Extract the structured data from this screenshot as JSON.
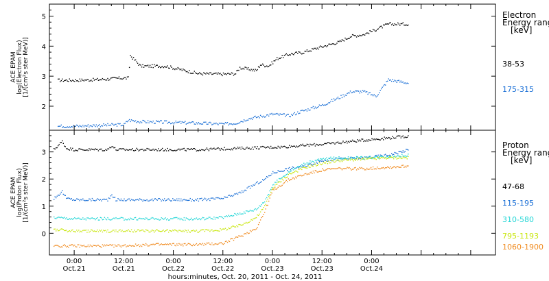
{
  "chart_data": [
    {
      "type": "scatter",
      "panel": "electron",
      "ylabel_lines": [
        "ACE EPAM",
        "log(Electron Flux)",
        "[1/(cm²s ster MeV)]"
      ],
      "ylim": [
        1.2,
        5.4
      ],
      "yticks": [
        "2",
        "3",
        "4",
        "5"
      ],
      "legend_title": [
        "Electron",
        "Energy range",
        "[keV]"
      ],
      "x_unit": "hours",
      "xlim": [
        -6,
        102
      ],
      "series": [
        {
          "name": "38-53",
          "color": "#000000",
          "x": [
            -4,
            0,
            6,
            11,
            13,
            13.5,
            16,
            22,
            30,
            36,
            39,
            40,
            44,
            45,
            47,
            49,
            52,
            55,
            60,
            64,
            67,
            70,
            76,
            81
          ],
          "y": [
            2.88,
            2.88,
            2.9,
            2.95,
            2.95,
            3.7,
            3.35,
            3.35,
            3.1,
            3.08,
            3.1,
            3.3,
            3.2,
            3.4,
            3.35,
            3.6,
            3.75,
            3.8,
            4.0,
            4.15,
            4.35,
            4.4,
            4.75,
            4.75
          ]
        },
        {
          "name": "175-315",
          "color": "#1a6fd6",
          "x": [
            -4,
            0,
            6,
            12,
            13,
            16,
            22,
            30,
            36,
            39,
            42,
            44,
            48,
            52,
            55,
            60,
            64,
            67,
            70,
            73,
            76,
            81
          ],
          "y": [
            1.35,
            1.35,
            1.38,
            1.4,
            1.55,
            1.5,
            1.48,
            1.45,
            1.42,
            1.45,
            1.6,
            1.65,
            1.75,
            1.7,
            1.85,
            2.05,
            2.3,
            2.5,
            2.5,
            2.35,
            2.9,
            2.78
          ]
        }
      ]
    },
    {
      "type": "scatter",
      "panel": "proton",
      "ylabel_lines": [
        "ACE EPAM",
        "log(Proton Flux)",
        "[1/(cm²s ster MeV)]"
      ],
      "ylim": [
        -0.8,
        3.8
      ],
      "yticks": [
        "0",
        "1",
        "2",
        "3"
      ],
      "legend_title": [
        "Proton",
        "Energy range",
        "[keV]"
      ],
      "x_unit": "hours",
      "xlim": [
        -6,
        102
      ],
      "xticks": [
        "0:00",
        "12:00",
        "0:00",
        "12:00",
        "0:00",
        "12:00",
        "0:00"
      ],
      "xticks_day": [
        "Oct.21",
        "Oct.21",
        "Oct.22",
        "Oct.22",
        "Oct.23",
        "Oct.23",
        "Oct.24"
      ],
      "xlabel": "hours:minutes, Oct. 20, 2011 - Oct. 24, 2011",
      "series": [
        {
          "name": "47-68",
          "color": "#000000",
          "x": [
            -5,
            -3,
            -2,
            0,
            8,
            9,
            10,
            14,
            20,
            30,
            40,
            50,
            60,
            70,
            81
          ],
          "y": [
            3.1,
            3.4,
            3.15,
            3.1,
            3.1,
            3.25,
            3.1,
            3.1,
            3.1,
            3.1,
            3.15,
            3.2,
            3.3,
            3.45,
            3.6
          ]
        },
        {
          "name": "115-195",
          "color": "#1a6fd6",
          "x": [
            -5,
            -3,
            -2,
            0,
            8,
            9,
            10,
            14,
            20,
            30,
            36,
            40,
            44,
            46,
            48,
            52,
            56,
            60,
            64,
            70,
            76,
            81
          ],
          "y": [
            1.3,
            1.55,
            1.3,
            1.25,
            1.25,
            1.45,
            1.25,
            1.25,
            1.25,
            1.25,
            1.3,
            1.5,
            1.85,
            2.0,
            2.25,
            2.4,
            2.5,
            2.7,
            2.75,
            2.8,
            2.9,
            3.1
          ]
        },
        {
          "name": "310-580",
          "color": "#22d6d6",
          "x": [
            -5,
            0,
            10,
            20,
            30,
            36,
            40,
            44,
            46,
            48,
            52,
            56,
            60,
            64,
            70,
            76,
            81
          ],
          "y": [
            0.6,
            0.55,
            0.55,
            0.55,
            0.55,
            0.6,
            0.75,
            0.9,
            1.2,
            1.8,
            2.3,
            2.6,
            2.75,
            2.8,
            2.8,
            2.85,
            2.9
          ]
        },
        {
          "name": "795-1193",
          "color": "#c8e60a",
          "x": [
            -5,
            0,
            10,
            20,
            30,
            36,
            40,
            44,
            46,
            48,
            52,
            56,
            60,
            64,
            70,
            76,
            81
          ],
          "y": [
            0.15,
            0.1,
            0.1,
            0.1,
            0.1,
            0.15,
            0.3,
            0.6,
            1.0,
            1.7,
            2.2,
            2.45,
            2.6,
            2.7,
            2.75,
            2.8,
            2.8
          ]
        },
        {
          "name": "1060-1900",
          "color": "#f08a1e",
          "x": [
            -5,
            0,
            10,
            20,
            30,
            36,
            40,
            44,
            46,
            48,
            52,
            56,
            60,
            64,
            70,
            76,
            81
          ],
          "y": [
            -0.45,
            -0.45,
            -0.45,
            -0.4,
            -0.4,
            -0.35,
            -0.1,
            0.2,
            0.8,
            1.6,
            2.0,
            2.2,
            2.35,
            2.4,
            2.4,
            2.45,
            2.5
          ]
        }
      ]
    }
  ]
}
